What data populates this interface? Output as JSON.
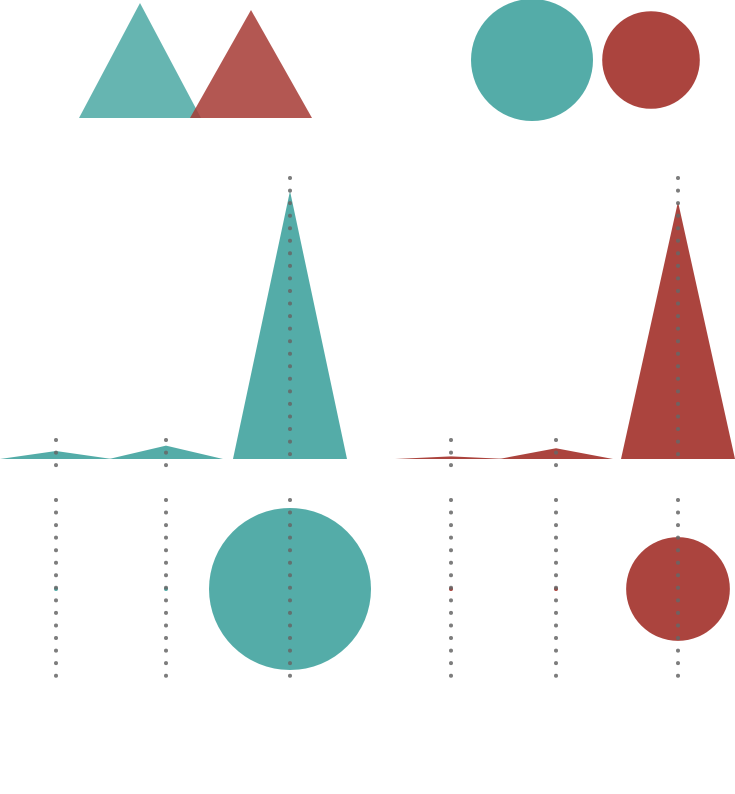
{
  "colors": {
    "teal": "#4ba8a3",
    "red": "#a63a34",
    "dot": "#666666",
    "background": "#ffffff"
  },
  "chart_data": [
    {
      "type": "legend-glyphs",
      "shape": "triangle",
      "series": [
        {
          "color": "#4ba8a3"
        },
        {
          "color": "#a63a34"
        }
      ]
    },
    {
      "type": "legend-glyphs",
      "shape": "circle",
      "series": [
        {
          "color": "#4ba8a3",
          "relative_size": 1.0
        },
        {
          "color": "#a63a34",
          "relative_size": 0.64
        }
      ]
    },
    {
      "type": "triangle-peaks",
      "series_color": "#4ba8a3",
      "values": [
        0.03,
        0.05,
        1.0
      ],
      "bases": [
        1.0,
        1.0,
        1.0
      ]
    },
    {
      "type": "triangle-peaks",
      "series_color": "#a63a34",
      "values": [
        0.01,
        0.04,
        0.96
      ],
      "bases": [
        1.0,
        1.0,
        1.0
      ]
    },
    {
      "type": "proportional-circles",
      "series_color": "#4ba8a3",
      "values": [
        0.0,
        0.0,
        1.0
      ]
    },
    {
      "type": "proportional-circles",
      "series_color": "#a63a34",
      "values": [
        0.0,
        0.0,
        0.41
      ]
    }
  ]
}
